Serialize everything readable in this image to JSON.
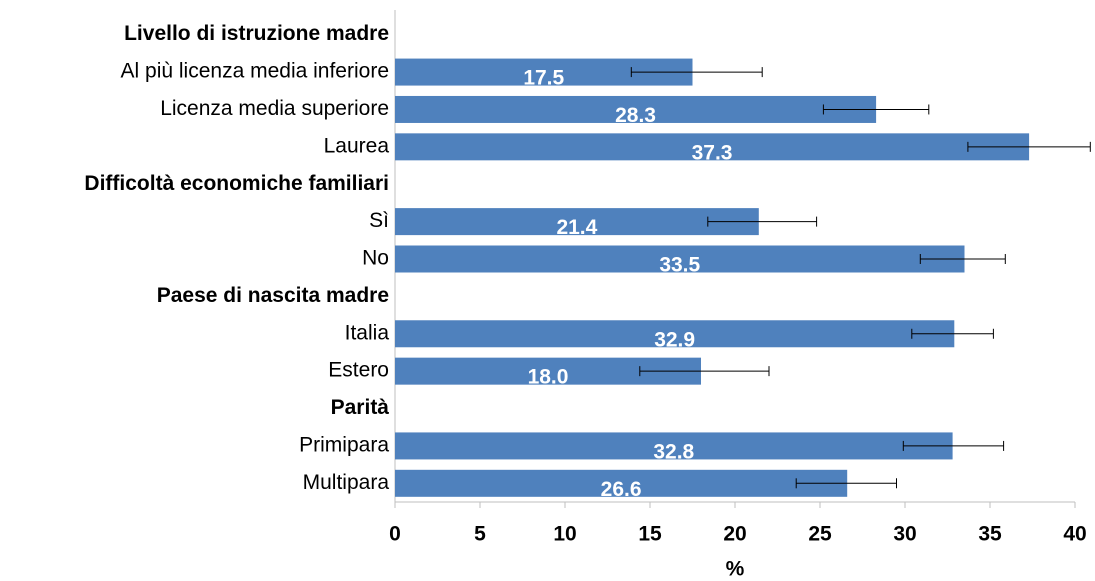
{
  "chart_data": {
    "type": "bar",
    "orientation": "horizontal",
    "categories": [
      "Livello di istruzione madre",
      "Al più licenza media inferiore",
      "Licenza media superiore",
      "Laurea",
      "Difficoltà economiche familiari",
      "Sì",
      "No",
      "Paese di nascita madre",
      "Italia",
      "Estero",
      "Parità",
      "Primipara",
      "Multipara"
    ],
    "group_headers": [
      0,
      4,
      7,
      10
    ],
    "values": [
      null,
      17.5,
      28.3,
      37.3,
      null,
      21.4,
      33.5,
      null,
      32.9,
      18.0,
      null,
      32.8,
      26.6
    ],
    "value_labels": [
      null,
      "17.5",
      "28.3",
      "37.3",
      null,
      "21.4",
      "33.5",
      null,
      "32.9",
      "18.0",
      null,
      "32.8",
      "26.6"
    ],
    "ci_low": [
      null,
      13.9,
      25.2,
      33.7,
      null,
      18.4,
      30.9,
      null,
      30.4,
      14.4,
      null,
      29.9,
      23.6
    ],
    "ci_high": [
      null,
      21.6,
      31.4,
      40.9,
      null,
      24.8,
      35.9,
      null,
      35.2,
      22.0,
      null,
      35.8,
      29.5
    ],
    "color": "#4f81bd",
    "xlabel": "%",
    "xlim": [
      0,
      40
    ],
    "xticks": [
      0,
      5,
      10,
      15,
      20,
      25,
      30,
      35,
      40
    ],
    "grid": false
  }
}
